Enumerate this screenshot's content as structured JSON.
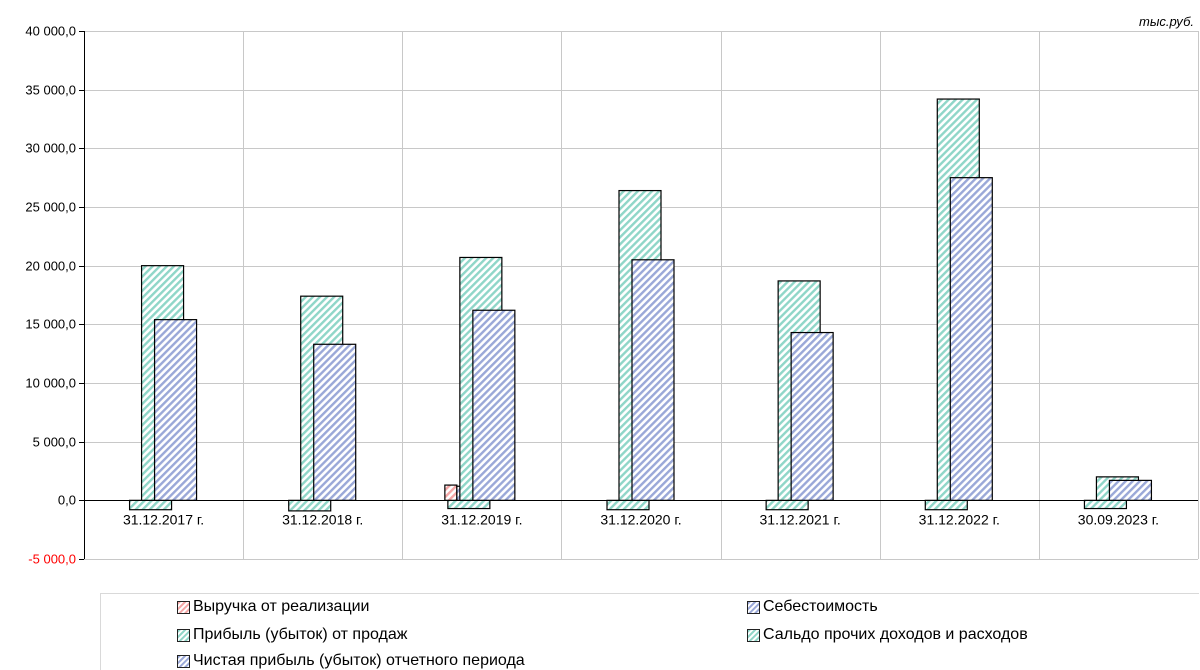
{
  "chart_data": {
    "type": "bar",
    "unit_label": "тыс.руб.",
    "categories": [
      "31.12.2017 г.",
      "31.12.2018 г.",
      "31.12.2019 г.",
      "31.12.2020 г.",
      "31.12.2021 г.",
      "31.12.2022 г.",
      "30.09.2023 г."
    ],
    "ylim": [
      -5000,
      40000
    ],
    "yticks": [
      -5000,
      0,
      5000,
      10000,
      15000,
      20000,
      25000,
      30000,
      35000,
      40000
    ],
    "ytick_labels": [
      "-5 000,0",
      "0,0",
      "5 000,0",
      "10 000,0",
      "15 000,0",
      "20 000,0",
      "25 000,0",
      "30 000,0",
      "35 000,0",
      "40 000,0"
    ],
    "grid": true,
    "legend_position": "bottom",
    "series": [
      {
        "name": "Выручка от реализации",
        "color": "#f4a6a6",
        "values": [
          0,
          0,
          1300,
          0,
          0,
          0,
          0
        ]
      },
      {
        "name": "Себестоимость",
        "color": "#9aa8d8",
        "values": [
          0,
          0,
          1200,
          0,
          0,
          0,
          0
        ]
      },
      {
        "name": "Прибыль (убыток) от продаж",
        "color": "#8fd6c8",
        "values": [
          20000,
          17400,
          20700,
          26400,
          18700,
          34200,
          2000
        ]
      },
      {
        "name": "Сальдо прочих доходов и расходов",
        "color": "#8fd6c8",
        "values": [
          -800,
          -900,
          -700,
          -800,
          -800,
          -800,
          -700
        ]
      },
      {
        "name": "Чистая прибыль (убыток) отчетного периода",
        "color": "#9aa8d8",
        "values": [
          15400,
          13300,
          16200,
          20500,
          14300,
          27500,
          1700
        ]
      }
    ]
  }
}
